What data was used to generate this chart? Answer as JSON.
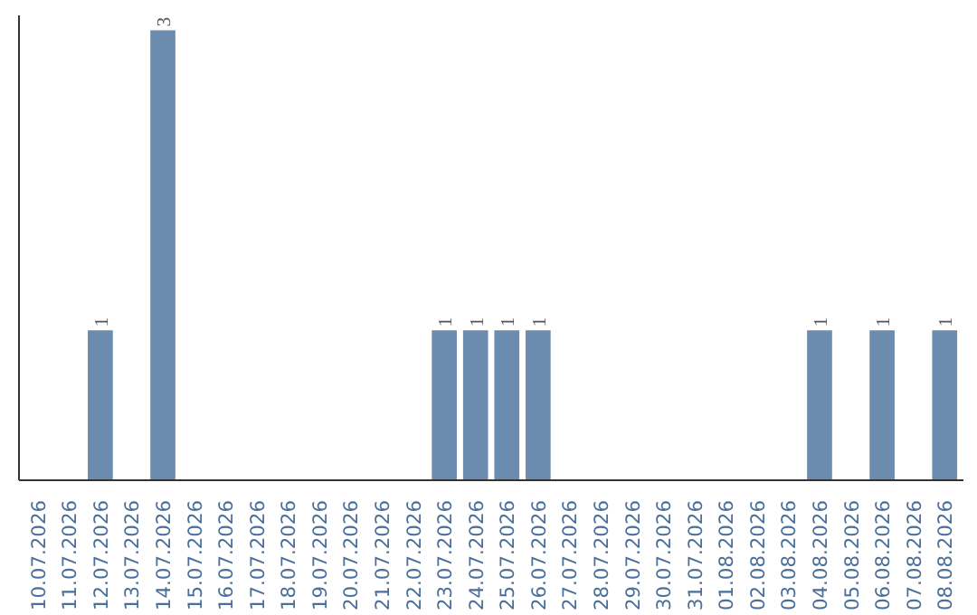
{
  "chart_data": {
    "type": "bar",
    "categories": [
      "10.07.2026",
      "11.07.2026",
      "12.07.2026",
      "13.07.2026",
      "14.07.2026",
      "15.07.2026",
      "16.07.2026",
      "17.07.2026",
      "18.07.2026",
      "19.07.2026",
      "20.07.2026",
      "21.07.2026",
      "22.07.2026",
      "23.07.2026",
      "24.07.2026",
      "25.07.2026",
      "26.07.2026",
      "27.07.2026",
      "28.07.2026",
      "29.07.2026",
      "30.07.2026",
      "31.07.2026",
      "01.08.2026",
      "02.08.2026",
      "03.08.2026",
      "04.08.2026",
      "05.08.2026",
      "06.08.2026",
      "07.08.2026",
      "08.08.2026"
    ],
    "values": [
      0,
      0,
      1,
      0,
      3,
      0,
      0,
      0,
      0,
      0,
      0,
      0,
      0,
      1,
      1,
      1,
      1,
      0,
      0,
      0,
      0,
      0,
      0,
      0,
      0,
      1,
      0,
      1,
      0,
      1
    ],
    "value_labels": [
      null,
      null,
      "1",
      null,
      "3",
      null,
      null,
      null,
      null,
      null,
      null,
      null,
      null,
      "1",
      "1",
      "1",
      "1",
      null,
      null,
      null,
      null,
      null,
      null,
      null,
      null,
      "1",
      null,
      "1",
      null,
      "1"
    ],
    "color": "#6b8cae",
    "ylim": [
      0,
      3.1
    ],
    "tick_labels": "x",
    "grid": false
  }
}
